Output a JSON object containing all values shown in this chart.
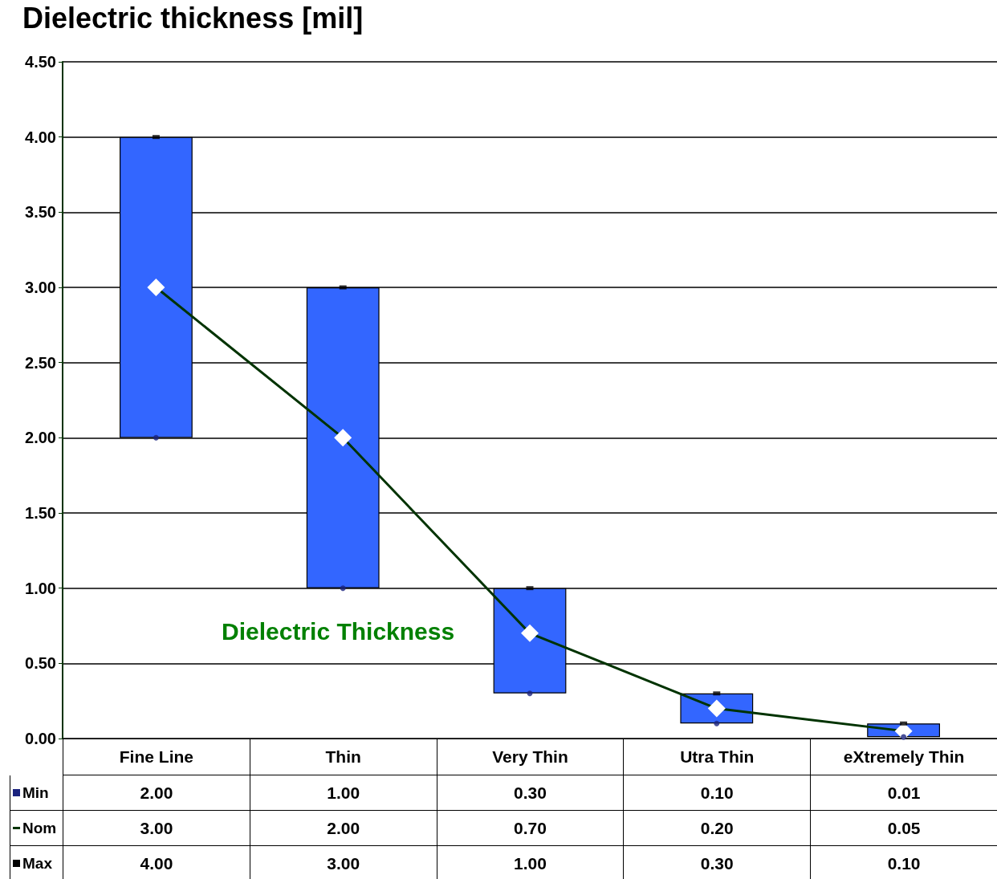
{
  "chart_data": {
    "type": "bar",
    "title": "Dielectric thickness [mil]",
    "categories": [
      "Fine Line",
      "Thin",
      "Very Thin",
      "Utra Thin",
      "eXtremely Thin"
    ],
    "ylim": [
      0,
      4.5
    ],
    "yticks": [
      {
        "value": 0,
        "label": "0.00"
      },
      {
        "value": 0.5,
        "label": "0.50"
      },
      {
        "value": 1,
        "label": "1.00"
      },
      {
        "value": 1.5,
        "label": "1.50"
      },
      {
        "value": 2,
        "label": "2.00"
      },
      {
        "value": 2.5,
        "label": "2.50"
      },
      {
        "value": 3,
        "label": "3.00"
      },
      {
        "value": 3.5,
        "label": "3.50"
      },
      {
        "value": 4,
        "label": "4.00"
      },
      {
        "value": 4.5,
        "label": "4.50"
      }
    ],
    "grid": "y",
    "legend": "bottom left",
    "series": [
      {
        "color": "#3366ff",
        "base": [
          2,
          1,
          0.3,
          0.1,
          0.01
        ],
        "values": [
          2,
          2,
          0.7,
          0.2,
          0.09
        ]
      },
      {
        "name": "Min",
        "type": "scatter",
        "marker": "circle",
        "color": "#1a237e",
        "values": [
          2,
          1,
          0.3,
          0.1,
          0.01
        ],
        "value_labels": [
          "2.00",
          "1.00",
          "0.30",
          "0.10",
          "0.01"
        ]
      },
      {
        "name": "Nom",
        "type": "line",
        "marker": "diamond",
        "color": "#003300",
        "values": [
          3,
          2,
          0.7,
          0.2,
          0.05
        ],
        "value_labels": [
          "3.00",
          "2.00",
          "0.70",
          "0.20",
          "0.05"
        ]
      },
      {
        "name": "Max",
        "type": "scatter",
        "marker": "square",
        "color": "#000000",
        "values": [
          4,
          3,
          1,
          0.3,
          0.1
        ],
        "value_labels": [
          "4.00",
          "3.00",
          "1.00",
          "0.30",
          "0.10"
        ]
      }
    ],
    "annotations": [
      "Dielectric Thickness"
    ]
  }
}
